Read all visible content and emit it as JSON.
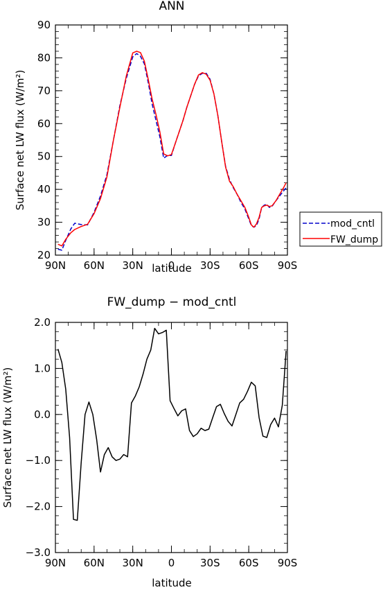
{
  "chart_data": [
    {
      "type": "line",
      "title": "ANN",
      "xlabel": "latitude",
      "ylabel": "Surface net LW flux (W/m²)",
      "x_ticks": [
        90,
        60,
        30,
        0,
        -30,
        -60,
        -90
      ],
      "x_tick_labels": [
        "90N",
        "60N",
        "30N",
        "0",
        "30S",
        "60S",
        "90S"
      ],
      "xlim": [
        90,
        -90
      ],
      "ylim": [
        20,
        90
      ],
      "y_ticks": [
        20,
        30,
        40,
        50,
        60,
        70,
        80,
        90
      ],
      "y_tick_labels": [
        "20",
        "30",
        "40",
        "50",
        "60",
        "70",
        "80",
        "90"
      ],
      "legend_placement": "right",
      "series": [
        {
          "name": "mod_cntl",
          "color": "#0000cc",
          "style": "dashed",
          "x": [
            88,
            85,
            82,
            78,
            75,
            70,
            65,
            60,
            55,
            50,
            45,
            40,
            35,
            30,
            27,
            24,
            21,
            18,
            15,
            12,
            9,
            6,
            3,
            0,
            -3,
            -6,
            -9,
            -12,
            -15,
            -18,
            -21,
            -24,
            -27,
            -30,
            -33,
            -36,
            -39,
            -42,
            -45,
            -48,
            -51,
            -54,
            -57,
            -60,
            -62,
            -64,
            -66,
            -68,
            -70,
            -72,
            -74,
            -76,
            -78,
            -81,
            -84,
            -87,
            -89
          ],
          "values": [
            21.8,
            21.5,
            24.5,
            28,
            29.7,
            29.3,
            29.2,
            33,
            38,
            44.5,
            55,
            65.5,
            73.8,
            80.3,
            81.3,
            80.5,
            78.2,
            72.5,
            66,
            61,
            56,
            49.5,
            50.3,
            50.3,
            54,
            57.5,
            61,
            65,
            68.5,
            72,
            74.5,
            75.3,
            75.3,
            73.5,
            69,
            62.5,
            54.5,
            47,
            43,
            40.5,
            38.5,
            36,
            34,
            31,
            29,
            28.5,
            29,
            31,
            34.5,
            35.2,
            35.5,
            34.5,
            34.8,
            36.5,
            38,
            39.5,
            40.5
          ]
        },
        {
          "name": "FW_dump",
          "color": "#ff0000",
          "style": "solid",
          "x": [
            88,
            85,
            82,
            78,
            75,
            70,
            65,
            60,
            55,
            50,
            45,
            40,
            35,
            30,
            27,
            24,
            21,
            18,
            15,
            12,
            9,
            6,
            3,
            0,
            -3,
            -6,
            -9,
            -12,
            -15,
            -18,
            -21,
            -24,
            -27,
            -30,
            -33,
            -36,
            -39,
            -42,
            -45,
            -48,
            -51,
            -54,
            -57,
            -60,
            -62,
            -64,
            -66,
            -68,
            -70,
            -72,
            -74,
            -76,
            -78,
            -81,
            -84,
            -87,
            -89
          ],
          "values": [
            23.3,
            22.8,
            24.8,
            26.8,
            27.8,
            28.7,
            29.4,
            32.6,
            37.2,
            43.8,
            55,
            65,
            74.5,
            81.5,
            82,
            81.6,
            79,
            73.5,
            67.5,
            62.8,
            57.5,
            50.8,
            50.2,
            50.6,
            54,
            57.5,
            61,
            65,
            68.5,
            72,
            74.8,
            75.5,
            75,
            73.2,
            69,
            62.5,
            54.5,
            46.8,
            42.5,
            40.8,
            38.5,
            36.5,
            34.5,
            31.5,
            29.2,
            28.5,
            29.5,
            31.5,
            34.5,
            35,
            35.2,
            34.8,
            35,
            36.5,
            38.5,
            40.5,
            42
          ]
        }
      ]
    },
    {
      "type": "line",
      "title": "FW_dump − mod_cntl",
      "xlabel": "latitude",
      "ylabel": "Surface net LW flux (W/m²)",
      "x_ticks": [
        90,
        60,
        30,
        0,
        -30,
        -60,
        -90
      ],
      "x_tick_labels": [
        "90N",
        "60N",
        "30N",
        "0",
        "30S",
        "60S",
        "90S"
      ],
      "xlim": [
        90,
        -90
      ],
      "ylim": [
        -3,
        2
      ],
      "y_ticks": [
        2,
        1,
        0,
        -1,
        -2,
        -3
      ],
      "y_tick_labels": [
        "2.0",
        "1.0",
        "0.0",
        "−1.0",
        "−2.0",
        "−3.0"
      ],
      "series": [
        {
          "name": "",
          "color": "#000000",
          "style": "solid",
          "x": [
            88,
            85,
            82,
            79,
            76,
            73,
            70,
            67,
            64,
            61,
            58,
            55,
            52,
            49,
            46,
            43,
            40,
            37,
            34,
            31,
            28,
            25,
            22,
            19,
            16,
            13,
            10,
            7,
            4,
            1,
            -2,
            -5,
            -8,
            -11,
            -14,
            -17,
            -20,
            -23,
            -26,
            -29,
            -32,
            -35,
            -38,
            -41,
            -44,
            -47,
            -50,
            -53,
            -56,
            -59,
            -62,
            -65,
            -68,
            -71,
            -74,
            -77,
            -80,
            -83,
            -86,
            -89
          ],
          "values": [
            1.42,
            1.13,
            0.55,
            -0.5,
            -2.28,
            -2.3,
            -1.05,
            0.0,
            0.27,
            0.0,
            -0.55,
            -1.25,
            -0.87,
            -0.72,
            -0.92,
            -1.0,
            -0.97,
            -0.87,
            -0.92,
            0.25,
            0.4,
            0.6,
            0.88,
            1.2,
            1.4,
            1.87,
            1.75,
            1.78,
            1.83,
            0.3,
            0.13,
            -0.03,
            0.08,
            0.12,
            -0.35,
            -0.48,
            -0.42,
            -0.3,
            -0.35,
            -0.32,
            -0.07,
            0.17,
            0.22,
            0.02,
            -0.15,
            -0.25,
            0.0,
            0.25,
            0.33,
            0.5,
            0.7,
            0.62,
            -0.07,
            -0.47,
            -0.5,
            -0.22,
            -0.08,
            -0.27,
            0.2,
            1.38
          ]
        }
      ]
    }
  ]
}
